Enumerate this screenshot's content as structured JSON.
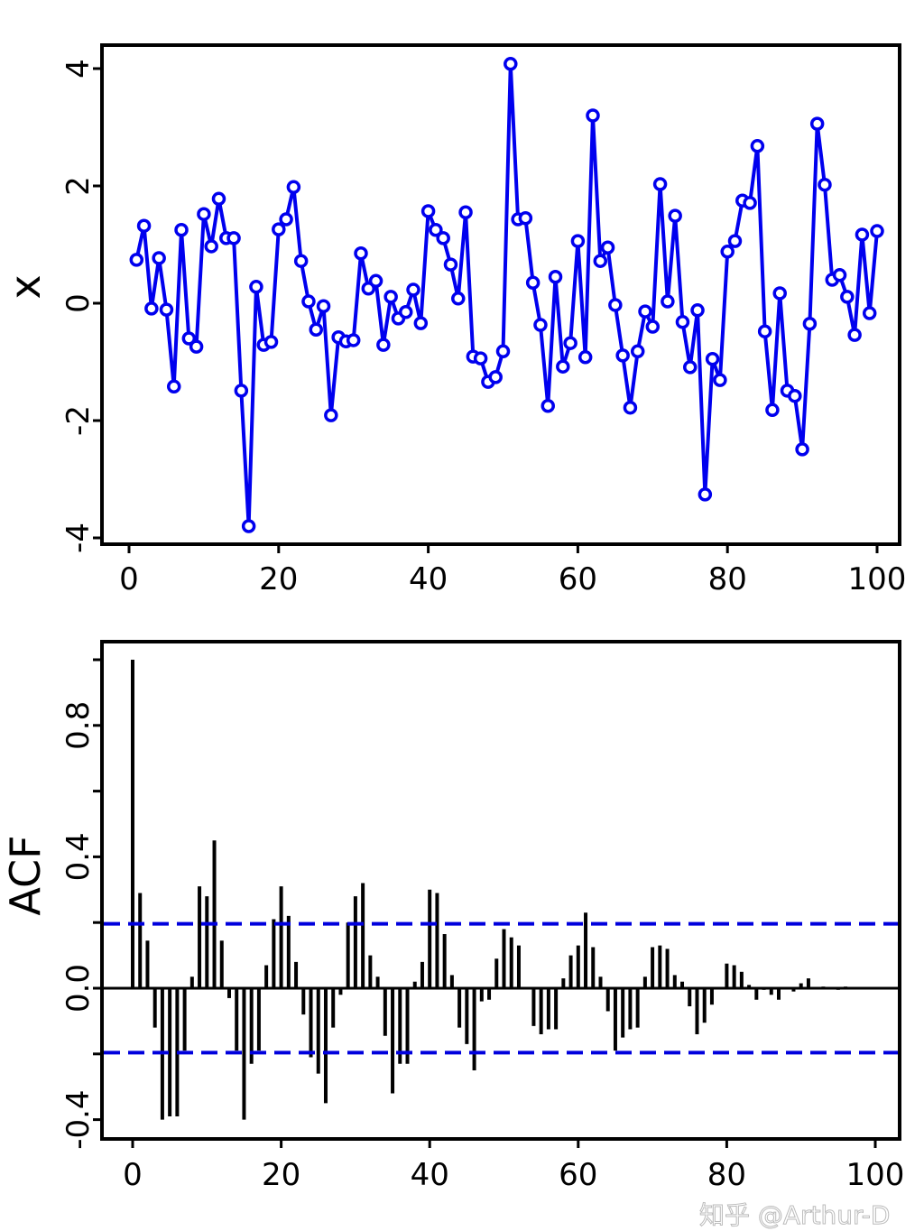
{
  "chart_data": [
    {
      "type": "line",
      "title": "",
      "xlabel": "",
      "ylabel": "x",
      "xlim": [
        -3,
        103
      ],
      "ylim": [
        -4.1,
        4.4
      ],
      "xticks": [
        0,
        20,
        40,
        60,
        80,
        100
      ],
      "yticks": [
        -4,
        -2,
        0,
        2,
        4
      ],
      "xtick_labels": [
        "0",
        "20",
        "40",
        "60",
        "80",
        "100"
      ],
      "ytick_labels": [
        "-4",
        "-2",
        "0",
        "2",
        "4"
      ],
      "grid": false,
      "markers": "open-circle",
      "color": "#0000ee",
      "x": [
        1,
        2,
        3,
        4,
        5,
        6,
        7,
        8,
        9,
        10,
        11,
        12,
        13,
        14,
        15,
        16,
        17,
        18,
        19,
        20,
        21,
        22,
        23,
        24,
        25,
        26,
        27,
        28,
        29,
        30,
        31,
        32,
        33,
        34,
        35,
        36,
        37,
        38,
        39,
        40,
        41,
        42,
        43,
        44,
        45,
        46,
        47,
        48,
        49,
        50,
        51,
        52,
        53,
        54,
        55,
        56,
        57,
        58,
        59,
        60,
        61,
        62,
        63,
        64,
        65,
        66,
        67,
        68,
        69,
        70,
        71,
        72,
        73,
        74,
        75,
        76,
        77,
        78,
        79,
        80,
        81,
        82,
        83,
        84,
        85,
        86,
        87,
        88,
        89,
        90,
        91,
        92,
        93,
        94,
        95,
        96,
        97,
        98,
        99,
        100
      ],
      "values": [
        0.74,
        1.32,
        -0.09,
        0.77,
        -0.11,
        -1.42,
        1.25,
        -0.6,
        -0.74,
        1.52,
        0.97,
        1.78,
        1.11,
        1.11,
        -1.49,
        -3.8,
        0.28,
        -0.71,
        -0.66,
        1.26,
        1.43,
        1.98,
        0.72,
        0.03,
        -0.45,
        -0.05,
        -1.91,
        -0.58,
        -0.65,
        -0.63,
        0.85,
        0.25,
        0.38,
        -0.71,
        0.11,
        -0.26,
        -0.15,
        0.23,
        -0.34,
        1.57,
        1.25,
        1.11,
        0.66,
        0.08,
        1.55,
        -0.91,
        -0.94,
        -1.34,
        -1.26,
        -0.82,
        4.08,
        1.43,
        1.45,
        0.35,
        -0.37,
        -1.75,
        0.45,
        -1.08,
        -0.68,
        1.06,
        -0.92,
        3.2,
        0.72,
        0.95,
        -0.03,
        -0.89,
        -1.78,
        -0.82,
        -0.14,
        -0.4,
        2.03,
        0.03,
        1.49,
        -0.32,
        -1.09,
        -0.12,
        -3.26,
        -0.95,
        -1.31,
        0.88,
        1.06,
        1.75,
        1.71,
        2.68,
        -0.48,
        -1.82,
        0.17,
        -1.49,
        -1.58,
        -2.49,
        -0.35,
        3.06,
        2.02,
        0.4,
        0.48,
        0.11,
        -0.54,
        1.17,
        -0.17,
        1.23
      ]
    },
    {
      "type": "bar",
      "title": "",
      "xlabel": "",
      "ylabel": "ACF",
      "xlim": [
        -4,
        103
      ],
      "ylim": [
        -0.46,
        1.05
      ],
      "xticks": [
        0,
        20,
        40,
        60,
        80,
        100
      ],
      "yticks": [
        -0.4,
        -0.2,
        0.0,
        0.2,
        0.4,
        0.6,
        0.8,
        1.0
      ],
      "xtick_labels": [
        "0",
        "20",
        "40",
        "60",
        "80",
        "100"
      ],
      "ytick_labels": [
        "-0.4",
        "",
        "0.0",
        "",
        "0.4",
        "",
        "0.8",
        ""
      ],
      "grid": false,
      "color": "#000000",
      "confidence_band": 0.196,
      "band_color": "#0000dd",
      "lags": [
        0,
        1,
        2,
        3,
        4,
        5,
        6,
        7,
        8,
        9,
        10,
        11,
        12,
        13,
        14,
        15,
        16,
        17,
        18,
        19,
        20,
        21,
        22,
        23,
        24,
        25,
        26,
        27,
        28,
        29,
        30,
        31,
        32,
        33,
        34,
        35,
        36,
        37,
        38,
        39,
        40,
        41,
        42,
        43,
        44,
        45,
        46,
        47,
        48,
        49,
        50,
        51,
        52,
        53,
        54,
        55,
        56,
        57,
        58,
        59,
        60,
        61,
        62,
        63,
        64,
        65,
        66,
        67,
        68,
        69,
        70,
        71,
        72,
        73,
        74,
        75,
        76,
        77,
        78,
        79,
        80,
        81,
        82,
        83,
        84,
        85,
        86,
        87,
        88,
        89,
        90,
        91,
        92,
        93,
        94,
        95,
        96,
        97,
        98,
        99
      ],
      "values": [
        1.0,
        0.29,
        0.145,
        -0.12,
        -0.4,
        -0.39,
        -0.39,
        -0.19,
        0.035,
        0.31,
        0.28,
        0.45,
        0.145,
        -0.03,
        -0.19,
        -0.4,
        -0.23,
        -0.19,
        0.07,
        0.21,
        0.31,
        0.22,
        0.08,
        -0.08,
        -0.21,
        -0.26,
        -0.35,
        -0.12,
        -0.02,
        0.2,
        0.28,
        0.32,
        0.1,
        0.035,
        -0.145,
        -0.32,
        -0.23,
        -0.23,
        0.02,
        0.08,
        0.3,
        0.29,
        0.165,
        0.04,
        -0.12,
        -0.17,
        -0.25,
        -0.04,
        -0.035,
        0.09,
        0.18,
        0.155,
        0.13,
        0.0,
        -0.115,
        -0.14,
        -0.125,
        -0.125,
        0.03,
        0.1,
        0.13,
        0.23,
        0.125,
        0.035,
        -0.07,
        -0.19,
        -0.15,
        -0.125,
        -0.12,
        0.035,
        0.125,
        0.13,
        0.12,
        0.04,
        0.02,
        -0.055,
        -0.14,
        -0.105,
        -0.05,
        0.0,
        0.075,
        0.07,
        0.05,
        0.01,
        -0.035,
        -0.005,
        -0.02,
        -0.035,
        0.0,
        -0.01,
        0.015,
        0.03,
        0.0,
        0.005,
        0.0,
        -0.005,
        0.005,
        0.0,
        0.0,
        0.0
      ]
    }
  ],
  "watermark": "知乎 @Arthur-D"
}
